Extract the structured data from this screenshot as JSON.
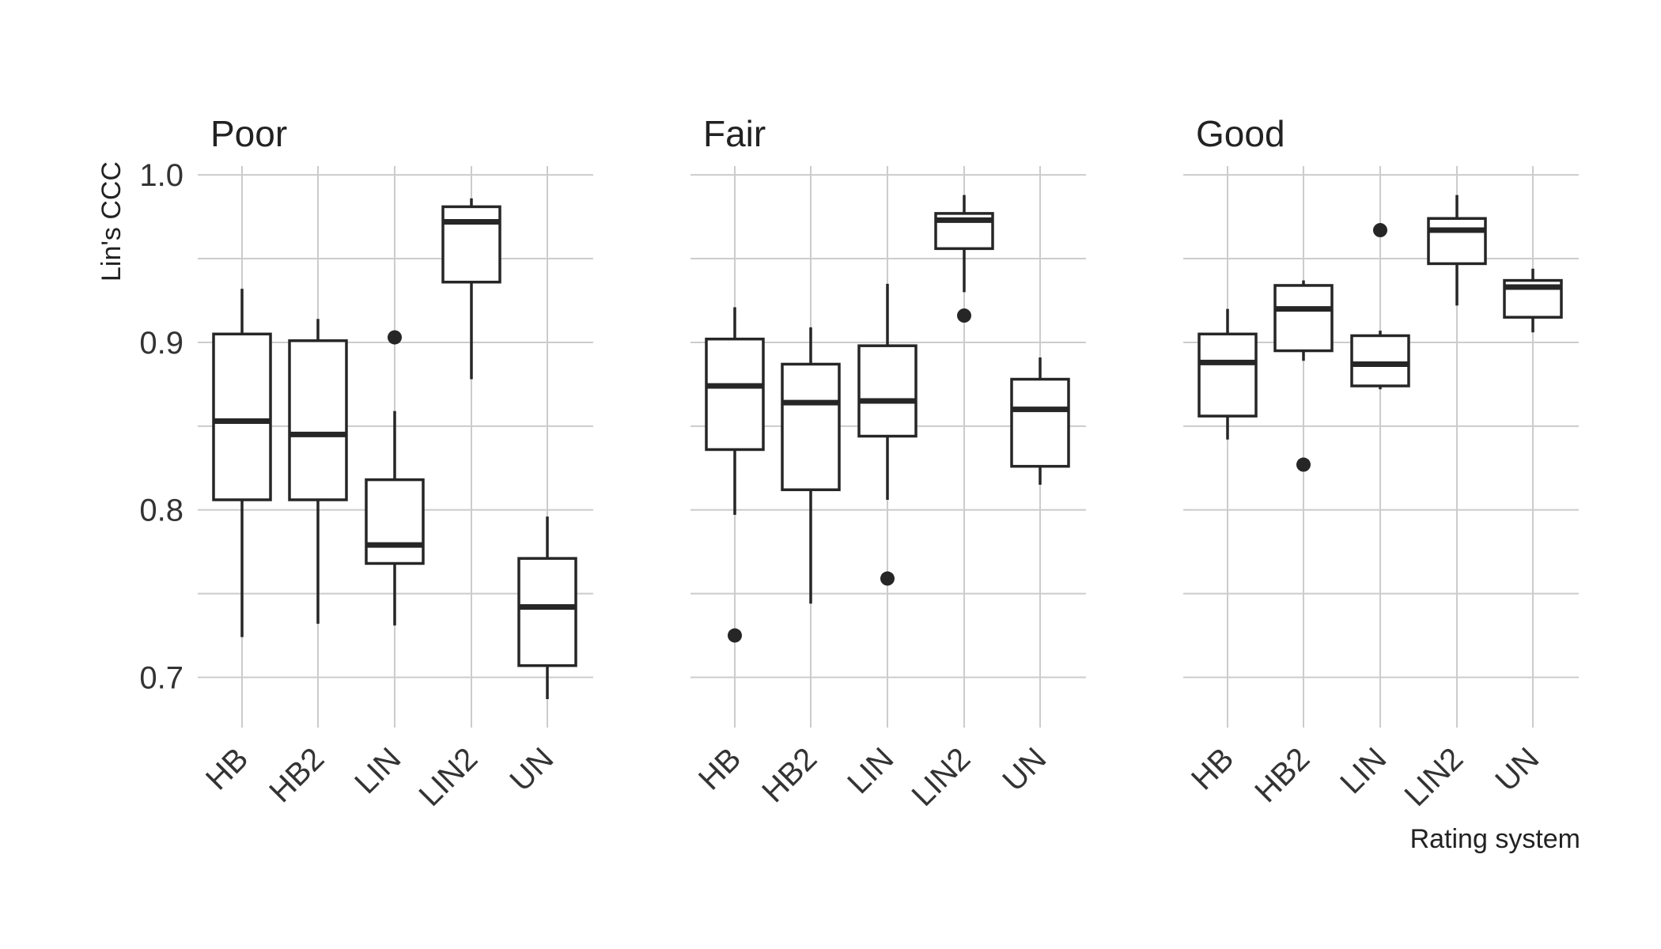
{
  "chart_data": {
    "type": "boxplot",
    "ylabel": "Lin's CCC",
    "xlabel": "Rating system",
    "ylim": [
      0.67,
      1.01
    ],
    "yticks": [
      0.7,
      0.8,
      0.9,
      1.0
    ],
    "ytick_labels": [
      "0.7",
      "0.8",
      "0.9",
      "1.0"
    ],
    "minor_yticks": [
      0.75,
      0.85,
      0.95
    ],
    "grid": true,
    "categories": [
      "HB",
      "HB2",
      "LIN",
      "LIN2",
      "UN"
    ],
    "panels": [
      {
        "title": "Poor",
        "boxes": [
          {
            "category": "HB",
            "lower_whisker": 0.724,
            "q1": 0.806,
            "median": 0.853,
            "q3": 0.905,
            "upper_whisker": 0.932,
            "outliers": []
          },
          {
            "category": "HB2",
            "lower_whisker": 0.732,
            "q1": 0.806,
            "median": 0.845,
            "q3": 0.901,
            "upper_whisker": 0.914,
            "outliers": []
          },
          {
            "category": "LIN",
            "lower_whisker": 0.731,
            "q1": 0.768,
            "median": 0.779,
            "q3": 0.818,
            "upper_whisker": 0.859,
            "outliers": [
              0.903
            ]
          },
          {
            "category": "LIN2",
            "lower_whisker": 0.878,
            "q1": 0.936,
            "median": 0.972,
            "q3": 0.981,
            "upper_whisker": 0.986,
            "outliers": []
          },
          {
            "category": "UN",
            "lower_whisker": 0.687,
            "q1": 0.707,
            "median": 0.742,
            "q3": 0.771,
            "upper_whisker": 0.796,
            "outliers": []
          }
        ]
      },
      {
        "title": "Fair",
        "boxes": [
          {
            "category": "HB",
            "lower_whisker": 0.797,
            "q1": 0.836,
            "median": 0.874,
            "q3": 0.902,
            "upper_whisker": 0.921,
            "outliers": [
              0.725
            ]
          },
          {
            "category": "HB2",
            "lower_whisker": 0.744,
            "q1": 0.812,
            "median": 0.864,
            "q3": 0.887,
            "upper_whisker": 0.909,
            "outliers": []
          },
          {
            "category": "LIN",
            "lower_whisker": 0.806,
            "q1": 0.844,
            "median": 0.865,
            "q3": 0.898,
            "upper_whisker": 0.935,
            "outliers": [
              0.759
            ]
          },
          {
            "category": "LIN2",
            "lower_whisker": 0.93,
            "q1": 0.956,
            "median": 0.973,
            "q3": 0.977,
            "upper_whisker": 0.988,
            "outliers": [
              0.916
            ]
          },
          {
            "category": "UN",
            "lower_whisker": 0.815,
            "q1": 0.826,
            "median": 0.86,
            "q3": 0.878,
            "upper_whisker": 0.891,
            "outliers": []
          }
        ]
      },
      {
        "title": "Good",
        "boxes": [
          {
            "category": "HB",
            "lower_whisker": 0.842,
            "q1": 0.856,
            "median": 0.888,
            "q3": 0.905,
            "upper_whisker": 0.92,
            "outliers": []
          },
          {
            "category": "HB2",
            "lower_whisker": 0.889,
            "q1": 0.895,
            "median": 0.92,
            "q3": 0.934,
            "upper_whisker": 0.937,
            "outliers": [
              0.827
            ]
          },
          {
            "category": "LIN",
            "lower_whisker": 0.872,
            "q1": 0.874,
            "median": 0.887,
            "q3": 0.904,
            "upper_whisker": 0.907,
            "outliers": [
              0.967
            ]
          },
          {
            "category": "LIN2",
            "lower_whisker": 0.922,
            "q1": 0.947,
            "median": 0.967,
            "q3": 0.974,
            "upper_whisker": 0.988,
            "outliers": []
          },
          {
            "category": "UN",
            "lower_whisker": 0.906,
            "q1": 0.915,
            "median": 0.933,
            "q3": 0.937,
            "upper_whisker": 0.944,
            "outliers": []
          }
        ]
      }
    ]
  }
}
